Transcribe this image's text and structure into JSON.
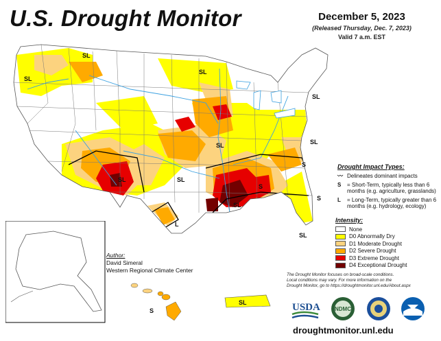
{
  "header": {
    "title": "U.S. Drought Monitor",
    "date": "December 5, 2023",
    "released": "(Released Thursday, Dec. 7, 2023)",
    "valid": "Valid 7 a.m. EST"
  },
  "impact_types": {
    "title": "Drought Impact Types:",
    "items": [
      {
        "key": "",
        "text": "Delineates dominant impacts"
      },
      {
        "key": "S",
        "text": "= Short-Term, typically less than 6 months (e.g. agriculture, grasslands)"
      },
      {
        "key": "L",
        "text": "= Long-Term, typically greater than 6 months (e.g. hydrology, ecology)"
      }
    ]
  },
  "intensity": {
    "title": "Intensity:",
    "items": [
      {
        "label": "None",
        "color": "#ffffff"
      },
      {
        "label": "D0 Abnormally Dry",
        "color": "#ffff00"
      },
      {
        "label": "D1 Moderate Drought",
        "color": "#fcd37f"
      },
      {
        "label": "D2 Severe Drought",
        "color": "#ffaa00"
      },
      {
        "label": "D3 Extreme Drought",
        "color": "#e60000"
      },
      {
        "label": "D4 Exceptional Drought",
        "color": "#730000"
      }
    ]
  },
  "author": {
    "label": "Author:",
    "name": "David Simeral",
    "org": "Western Regional Climate Center"
  },
  "note": {
    "line1": "The Drought Monitor focuses on broad-scale conditions.",
    "line2": "Local conditions may vary. For more information on the",
    "line3": "Drought Monitor, go to https://droughtmonitor.unl.edu/About.aspx"
  },
  "logos": {
    "usda": "USDA",
    "ndmc": "NDMC"
  },
  "website": "droughtmonitor.unl.edu",
  "map_labels": {
    "sl": "SL",
    "s": "S",
    "l": "L"
  }
}
